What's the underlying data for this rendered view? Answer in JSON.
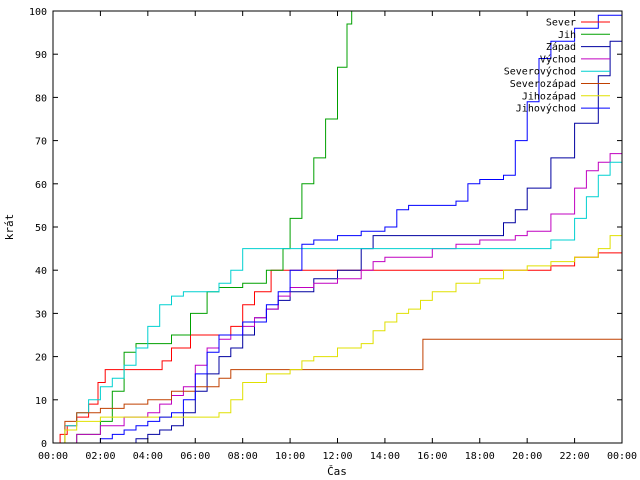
{
  "chart_data": {
    "type": "line",
    "xlabel": "Čas",
    "ylabel": "krát",
    "xlim": [
      0,
      24
    ],
    "ylim": [
      0,
      100
    ],
    "x_ticks": [
      {
        "v": 0,
        "label": "00:00"
      },
      {
        "v": 2,
        "label": "02:00"
      },
      {
        "v": 4,
        "label": "04:00"
      },
      {
        "v": 6,
        "label": "06:00"
      },
      {
        "v": 8,
        "label": "08:00"
      },
      {
        "v": 10,
        "label": "10:00"
      },
      {
        "v": 12,
        "label": "12:00"
      },
      {
        "v": 14,
        "label": "14:00"
      },
      {
        "v": 16,
        "label": "16:00"
      },
      {
        "v": 18,
        "label": "18:00"
      },
      {
        "v": 20,
        "label": "20:00"
      },
      {
        "v": 22,
        "label": "22:00"
      },
      {
        "v": 24,
        "label": "00:00"
      }
    ],
    "y_ticks": [
      0,
      10,
      20,
      30,
      40,
      50,
      60,
      70,
      80,
      90,
      100
    ],
    "grid": false,
    "legend_position": "top-right",
    "series": [
      {
        "name": "Sever",
        "color": "#ff0000",
        "x": [
          0,
          0.3,
          0.6,
          1,
          1.5,
          1.9,
          2.2,
          3,
          4,
          4.6,
          5,
          5.8,
          6.5,
          7.2,
          7.5,
          8,
          8.5,
          9.2,
          10,
          12,
          14,
          16,
          18,
          20,
          21,
          22,
          23,
          24
        ],
        "y": [
          0,
          2,
          4,
          6,
          9,
          14,
          17,
          17,
          17,
          19,
          22,
          25,
          25,
          25,
          27,
          32,
          35,
          40,
          40,
          40,
          40,
          40,
          40,
          40,
          41,
          43,
          44,
          44
        ]
      },
      {
        "name": "Jih",
        "color": "#00a000",
        "x": [
          0,
          0.5,
          1,
          2,
          2.5,
          3,
          3.5,
          4,
          5,
          5.8,
          6.5,
          7,
          8,
          9,
          9.7,
          10,
          10.5,
          11,
          11.5,
          12,
          12.4,
          12.6
        ],
        "y": [
          0,
          0,
          2,
          5,
          12,
          21,
          23,
          23,
          25,
          30,
          35,
          36,
          37,
          40,
          45,
          52,
          60,
          66,
          75,
          87,
          97,
          100
        ]
      },
      {
        "name": "Západ",
        "color": "#0000a0",
        "x": [
          0,
          0.3,
          2,
          2.5,
          3,
          3.5,
          4,
          4.5,
          5,
          5.5,
          6,
          6.5,
          7,
          7.5,
          8,
          8.5,
          9,
          9.5,
          10,
          11,
          12,
          13,
          13.5,
          14,
          15,
          16,
          16.5,
          17,
          18,
          19,
          19.5,
          20,
          21,
          22,
          23,
          23.5,
          24
        ],
        "y": [
          0,
          0,
          0,
          0,
          0,
          1,
          2,
          3,
          4,
          7,
          12,
          16,
          20,
          22,
          25,
          29,
          31,
          33,
          35,
          38,
          40,
          45,
          48,
          48,
          48,
          48,
          48,
          48,
          48,
          51,
          54,
          59,
          66,
          74,
          85,
          93,
          99
        ]
      },
      {
        "name": "Východ",
        "color": "#c000c0",
        "x": [
          0,
          1,
          2,
          3,
          4,
          4.5,
          5,
          5.5,
          6,
          6.5,
          7,
          7.5,
          8,
          8.5,
          9,
          9.5,
          10,
          11,
          12,
          13,
          13.5,
          14,
          16,
          17,
          18,
          19,
          19.5,
          20,
          21,
          22,
          22.5,
          23,
          23.5,
          24
        ],
        "y": [
          0,
          2,
          4,
          6,
          7,
          9,
          11,
          13,
          18,
          22,
          24,
          25,
          27,
          29,
          31,
          34,
          36,
          37,
          38,
          40,
          42,
          43,
          45,
          46,
          47,
          47,
          48,
          49,
          53,
          59,
          63,
          65,
          67,
          68
        ]
      },
      {
        "name": "Severovýchod",
        "color": "#00d0d0",
        "x": [
          0,
          0.5,
          1,
          1.5,
          2,
          2.5,
          3,
          3.5,
          4,
          4.5,
          5,
          5.5,
          6,
          6.5,
          7,
          7.5,
          8,
          8.5,
          9,
          10,
          12,
          14,
          16,
          18,
          20,
          21,
          22,
          22.5,
          23,
          23.5,
          24
        ],
        "y": [
          0,
          4,
          7,
          10,
          13,
          15,
          18,
          22,
          27,
          32,
          34,
          35,
          35,
          35,
          37,
          40,
          45,
          45,
          45,
          45,
          45,
          45,
          45,
          45,
          45,
          47,
          52,
          57,
          62,
          65,
          65
        ]
      },
      {
        "name": "Severozápad",
        "color": "#c04000",
        "x": [
          0,
          0.5,
          1,
          2,
          3,
          4,
          5,
          6,
          7,
          7.5,
          8,
          9,
          10,
          11,
          12,
          13,
          14,
          15,
          15.5,
          15.6,
          16,
          18,
          20,
          22,
          24
        ],
        "y": [
          0,
          5,
          7,
          8,
          9,
          10,
          12,
          13,
          15,
          17,
          17,
          17,
          17,
          17,
          17,
          17,
          17,
          17,
          17,
          24,
          24,
          24,
          24,
          24,
          24
        ]
      },
      {
        "name": "Jihozápad",
        "color": "#e0e000",
        "x": [
          0,
          0.5,
          1,
          2,
          3,
          4,
          5,
          6,
          7,
          7.5,
          8,
          9,
          9.5,
          10,
          10.5,
          11,
          12,
          13,
          13.5,
          14,
          14.5,
          15,
          15.5,
          16,
          17,
          18,
          19,
          20,
          21,
          22,
          23,
          23.5,
          24
        ],
        "y": [
          0,
          3,
          5,
          6,
          6,
          6,
          6,
          6,
          7,
          10,
          14,
          16,
          16,
          17,
          19,
          20,
          22,
          23,
          26,
          28,
          30,
          31,
          33,
          35,
          37,
          38,
          40,
          41,
          42,
          43,
          45,
          48,
          52
        ]
      },
      {
        "name": "Jihovýchod",
        "color": "#0000ff",
        "x": [
          0,
          1,
          2,
          2.5,
          3,
          3.5,
          4,
          4.5,
          5,
          5.5,
          6,
          6.5,
          7,
          8,
          9,
          9.5,
          10,
          10.5,
          11,
          12,
          13,
          14,
          14.5,
          15,
          16,
          17,
          17.5,
          18,
          19,
          19.5,
          20,
          20.5,
          21,
          22,
          23,
          24
        ],
        "y": [
          0,
          0,
          1,
          2,
          3,
          4,
          5,
          6,
          7,
          10,
          16,
          21,
          25,
          28,
          32,
          35,
          40,
          46,
          47,
          48,
          49,
          50,
          54,
          55,
          55,
          56,
          60,
          61,
          62,
          70,
          79,
          89,
          93,
          96,
          99,
          100
        ]
      }
    ]
  }
}
